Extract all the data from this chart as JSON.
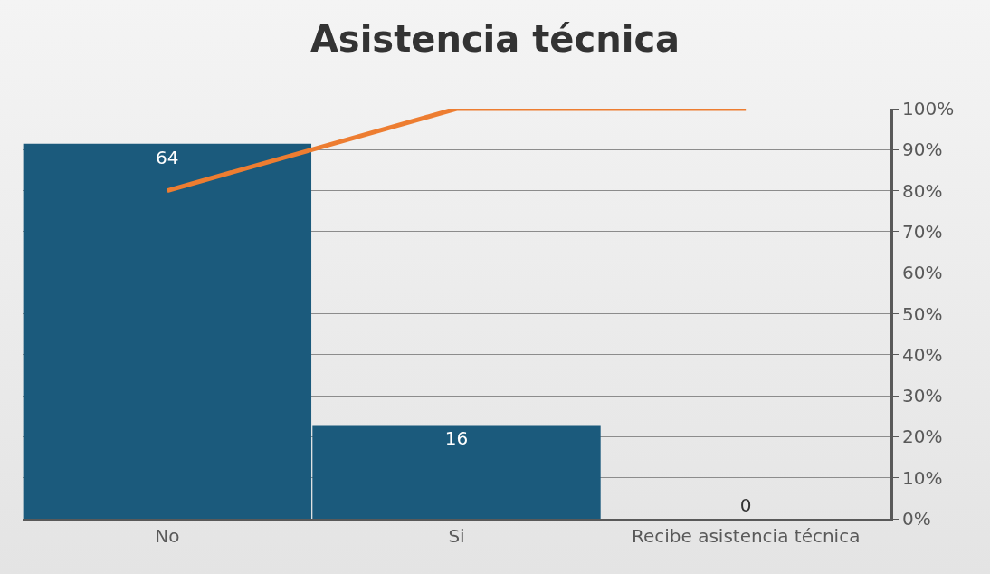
{
  "chart_data": {
    "type": "bar",
    "title": "Asistencia técnica",
    "categories": [
      "No",
      "Si",
      "Recibe asistencia técnica"
    ],
    "series": [
      {
        "color": "#1b5a7c",
        "values": [
          64,
          16,
          0
        ],
        "value_labels": [
          "64",
          "16",
          "0"
        ]
      },
      {
        "type": "line",
        "axis": "y2",
        "color": "#ed7d31",
        "values": [
          80,
          100,
          100
        ],
        "marker": "none",
        "line_style": "solid"
      }
    ],
    "ylim": [
      0,
      70
    ],
    "y2lim": [
      0,
      100
    ],
    "y2ticks": [
      {
        "value": 0,
        "label": "0%"
      },
      {
        "value": 10,
        "label": "10%"
      },
      {
        "value": 20,
        "label": "20%"
      },
      {
        "value": 30,
        "label": "30%"
      },
      {
        "value": 40,
        "label": "40%"
      },
      {
        "value": 50,
        "label": "50%"
      },
      {
        "value": 60,
        "label": "60%"
      },
      {
        "value": 70,
        "label": "70%"
      },
      {
        "value": 80,
        "label": "80%"
      },
      {
        "value": 90,
        "label": "90%"
      },
      {
        "value": 100,
        "label": "100%"
      }
    ],
    "grid": true,
    "legend": false
  }
}
